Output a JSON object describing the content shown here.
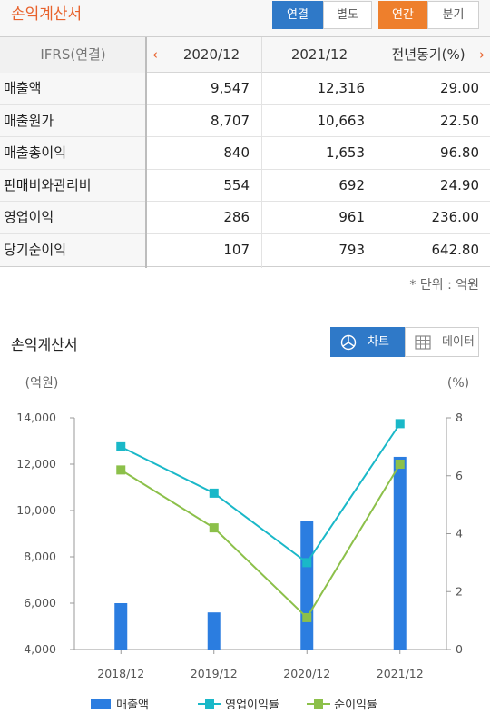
{
  "header": {
    "title": "손익계산서",
    "consolidation_tabs": [
      "연결",
      "별도"
    ],
    "period_tabs": [
      "연간",
      "분기"
    ],
    "active_consolidation": "연결",
    "active_period": "연간"
  },
  "table": {
    "corner_label": "IFRS(연결)",
    "columns": [
      "2020/12",
      "2021/12",
      "전년동기(%)"
    ],
    "rows": [
      {
        "label": "매출액",
        "values": [
          "9,547",
          "12,316",
          "29.00"
        ]
      },
      {
        "label": "매출원가",
        "values": [
          "8,707",
          "10,663",
          "22.50"
        ]
      },
      {
        "label": "매출총이익",
        "values": [
          "840",
          "1,653",
          "96.80"
        ]
      },
      {
        "label": "판매비와관리비",
        "values": [
          "554",
          "692",
          "24.90"
        ]
      },
      {
        "label": "영업이익",
        "values": [
          "286",
          "961",
          "236.00"
        ]
      },
      {
        "label": "당기순이익",
        "values": [
          "107",
          "793",
          "642.80"
        ]
      }
    ],
    "unit_note": "* 단위 : 억원"
  },
  "chart_section": {
    "title": "손익계산서",
    "chart_toggle_label": "차트",
    "data_toggle_label": "데이터",
    "active_view": "차트"
  },
  "chart_data": {
    "type": "bar",
    "categories": [
      "2018/12",
      "2019/12",
      "2020/12",
      "2021/12"
    ],
    "y_left_label": "(억원)",
    "y_right_label": "(%)",
    "y_left_ticks": [
      "4,000",
      "6,000",
      "8,000",
      "10,000",
      "12,000",
      "14,000"
    ],
    "y_right_ticks": [
      "0",
      "2",
      "4",
      "6",
      "8"
    ],
    "y_left_range": [
      4000,
      14000
    ],
    "y_right_range": [
      0,
      8
    ],
    "series": [
      {
        "name": "매출액",
        "kind": "bar",
        "axis": "left",
        "color": "#2b7de0",
        "values": [
          6000,
          5600,
          9547,
          12316
        ]
      },
      {
        "name": "영업이익률",
        "kind": "line",
        "axis": "right",
        "color": "#1ab8c8",
        "values": [
          7.0,
          5.4,
          3.0,
          7.8
        ]
      },
      {
        "name": "순이익률",
        "kind": "line",
        "axis": "right",
        "color": "#8cc04a",
        "values": [
          6.2,
          4.2,
          1.1,
          6.4
        ]
      }
    ],
    "grid": false,
    "legend": "bottom"
  }
}
